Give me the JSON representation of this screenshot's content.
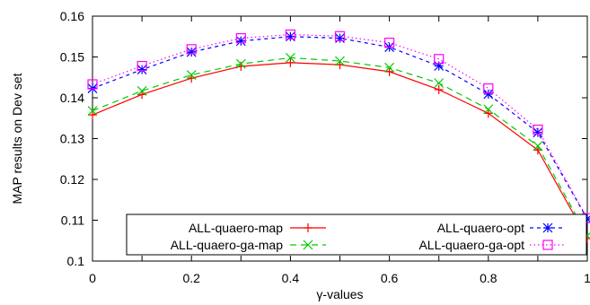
{
  "chart_data": {
    "type": "line",
    "xlabel": "γ-values",
    "ylabel": "MAP results on Dev set",
    "xlim": [
      0,
      1
    ],
    "ylim": [
      0.1,
      0.16
    ],
    "x_ticks": [
      "0",
      "0.2",
      "0.4",
      "0.6",
      "0.8",
      "1"
    ],
    "y_ticks": [
      "0.1",
      "0.11",
      "0.12",
      "0.13",
      "0.14",
      "0.15",
      "0.16"
    ],
    "x": [
      0,
      0.1,
      0.2,
      0.3,
      0.4,
      0.5,
      0.6,
      0.7,
      0.8,
      0.9,
      1.0
    ],
    "legend_placement": "bottom",
    "grid": false,
    "series": [
      {
        "name": "ALL-quaero-map",
        "color": "#ff0000",
        "marker": "plus",
        "dash": "solid",
        "values": [
          0.1358,
          0.1408,
          0.1448,
          0.1477,
          0.1486,
          0.1481,
          0.1464,
          0.142,
          0.1362,
          0.1272,
          0.1055
        ]
      },
      {
        "name": "ALL-quaero-ga-map",
        "color": "#00cc00",
        "marker": "x",
        "dash": "dashed",
        "values": [
          0.1368,
          0.1417,
          0.1456,
          0.1483,
          0.1498,
          0.149,
          0.1474,
          0.1436,
          0.1372,
          0.1282,
          0.1062
        ]
      },
      {
        "name": "ALL-quaero-opt",
        "color": "#0000ff",
        "marker": "star",
        "dash": "short-dash",
        "values": [
          0.1423,
          0.1469,
          0.1512,
          0.1539,
          0.155,
          0.1546,
          0.1524,
          0.1478,
          0.1409,
          0.1315,
          0.1103
        ]
      },
      {
        "name": "ALL-quaero-ga-opt",
        "color": "#ff00ff",
        "marker": "square",
        "dash": "dotted",
        "values": [
          0.1433,
          0.1478,
          0.1519,
          0.1546,
          0.1555,
          0.1551,
          0.1535,
          0.1495,
          0.1423,
          0.1322,
          0.1105
        ]
      }
    ]
  }
}
